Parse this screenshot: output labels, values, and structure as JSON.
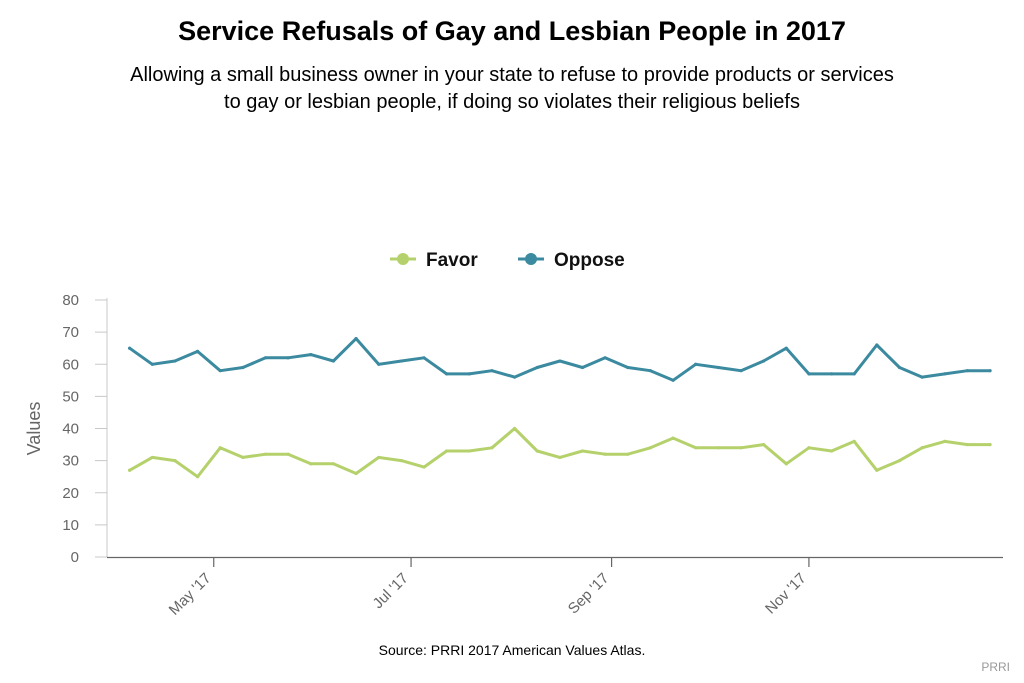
{
  "colors": {
    "favor": "#b5d16c",
    "oppose": "#3b8aa0",
    "axis": "#666666",
    "tick_text": "#666666",
    "credit": "#999999"
  },
  "chart_data": {
    "type": "line",
    "title": "Service Refusals of Gay and Lesbian People in 2017",
    "subtitle_lines": [
      "Allowing a small business owner in your state to refuse to provide products or services",
      "to gay or lesbian people, if doing so violates their religious beliefs"
    ],
    "ylabel": "Values",
    "xlabel": "",
    "ylim": [
      0,
      80
    ],
    "yticks": [
      0,
      10,
      20,
      30,
      40,
      50,
      60,
      70,
      80
    ],
    "x_ticks": [
      {
        "label": "May '17",
        "date": "2017-05-01"
      },
      {
        "label": "Jul '17",
        "date": "2017-07-01"
      },
      {
        "label": "Sep '17",
        "date": "2017-09-01"
      },
      {
        "label": "Nov '17",
        "date": "2017-11-01"
      }
    ],
    "x_range": [
      "2017-03-29",
      "2017-12-31"
    ],
    "grid": false,
    "legend_position": "top-center",
    "x": [
      "2017-04-05",
      "2017-04-12",
      "2017-04-19",
      "2017-04-26",
      "2017-05-03",
      "2017-05-10",
      "2017-05-17",
      "2017-05-24",
      "2017-05-31",
      "2017-06-07",
      "2017-06-14",
      "2017-06-21",
      "2017-06-28",
      "2017-07-05",
      "2017-07-12",
      "2017-07-19",
      "2017-07-26",
      "2017-08-02",
      "2017-08-09",
      "2017-08-16",
      "2017-08-23",
      "2017-08-30",
      "2017-09-06",
      "2017-09-13",
      "2017-09-20",
      "2017-09-27",
      "2017-10-04",
      "2017-10-11",
      "2017-10-18",
      "2017-10-25",
      "2017-11-01",
      "2017-11-08",
      "2017-11-15",
      "2017-11-22",
      "2017-11-29",
      "2017-12-06",
      "2017-12-13",
      "2017-12-20",
      "2017-12-27"
    ],
    "series": [
      {
        "name": "Favor",
        "values": [
          27,
          31,
          30,
          25,
          34,
          31,
          32,
          32,
          29,
          29,
          26,
          31,
          30,
          28,
          33,
          33,
          34,
          40,
          33,
          31,
          33,
          32,
          32,
          34,
          37,
          34,
          34,
          34,
          35,
          29,
          34,
          33,
          36,
          27,
          30,
          34,
          36,
          35,
          35
        ]
      },
      {
        "name": "Oppose",
        "values": [
          65,
          60,
          61,
          64,
          58,
          59,
          62,
          62,
          63,
          61,
          68,
          60,
          61,
          62,
          57,
          57,
          58,
          56,
          59,
          61,
          59,
          62,
          59,
          58,
          55,
          60,
          59,
          58,
          61,
          65,
          57,
          57,
          57,
          66,
          59,
          56,
          57,
          58,
          58
        ]
      }
    ]
  },
  "source_text": "Source: PRRI 2017 American Values Atlas.",
  "credit_text": "PRRI"
}
